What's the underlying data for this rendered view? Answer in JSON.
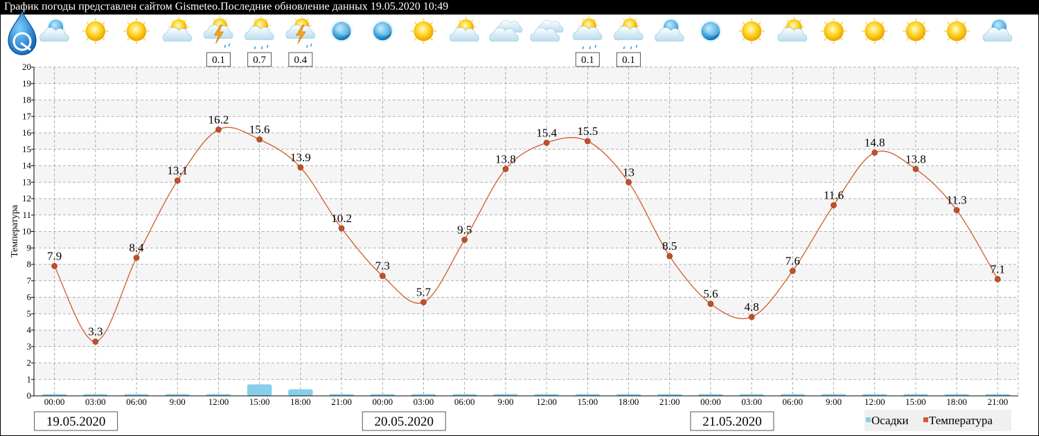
{
  "header": {
    "title": "График погоды представлен сайтом Gismeteo.Последние обновление данных 19.05.2020 10:49"
  },
  "legend": {
    "precip_label": "Осадки",
    "temp_label": "Температура"
  },
  "colors": {
    "temperature": "#d2592b",
    "temperature_marker": "#c0502a",
    "precipitation": "#87ceeb",
    "grid": "#999999",
    "band": "#f5f5f5"
  },
  "weather_icons": [
    "gismeteo-logo-icon",
    "partly-cloudy-night-icon",
    "sun-icon",
    "sun-icon",
    "partly-cloudy-icon",
    "thunderstorm-rain-icon",
    "cloud-rain-icon",
    "thunderstorm-rain-icon",
    "clear-night-icon",
    "clear-night-icon",
    "sun-icon",
    "partly-cloudy-icon",
    "overcast-icon",
    "overcast-icon",
    "cloud-rain-icon",
    "cloud-rain-icon",
    "partly-cloudy-night-icon",
    "clear-night-icon",
    "sun-icon",
    "partly-cloudy-icon",
    "sun-icon",
    "sun-icon",
    "sun-icon",
    "sun-icon",
    "partly-cloudy-night-icon"
  ],
  "chart_data": {
    "type": "line",
    "ylabel": "Температура",
    "xlabel": "",
    "ylim": [
      0,
      20
    ],
    "yticks": [
      0,
      1,
      2,
      3,
      4,
      5,
      6,
      7,
      8,
      9,
      10,
      11,
      12,
      13,
      14,
      15,
      16,
      17,
      18,
      19,
      20
    ],
    "grid": true,
    "legend_position": "bottom-right",
    "categories": [
      "00:00",
      "03:00",
      "06:00",
      "9:00",
      "12:00",
      "15:00",
      "18:00",
      "21:00",
      "00:00",
      "03:00",
      "06:00",
      "9:00",
      "12:00",
      "15:00",
      "18:00",
      "21:00",
      "00:00",
      "03:00",
      "06:00",
      "9:00",
      "12:00",
      "15:00",
      "18:00",
      "21:00"
    ],
    "dates": [
      "19.05.2020",
      "20.05.2020",
      "21.05.2020"
    ],
    "series": [
      {
        "name": "Температура",
        "type": "line",
        "values": [
          7.9,
          3.3,
          8.4,
          13.1,
          16.2,
          15.6,
          13.9,
          10.2,
          7.3,
          5.7,
          9.5,
          13.8,
          15.4,
          15.5,
          13,
          8.5,
          5.6,
          4.8,
          7.6,
          11.6,
          14.8,
          13.8,
          11.3,
          7.1
        ]
      },
      {
        "name": "Осадки",
        "type": "bar",
        "values": [
          0,
          0,
          0,
          0,
          0.1,
          0.7,
          0.4,
          0,
          0,
          0,
          0,
          0,
          0,
          0.1,
          0.1,
          0,
          0,
          0,
          0,
          0,
          0,
          0,
          0,
          0
        ]
      }
    ],
    "precip_labels": [
      {
        "index": 4,
        "text": "0.1"
      },
      {
        "index": 5,
        "text": "0.7"
      },
      {
        "index": 6,
        "text": "0.4"
      },
      {
        "index": 13,
        "text": "0.1"
      },
      {
        "index": 14,
        "text": "0.1"
      }
    ]
  }
}
